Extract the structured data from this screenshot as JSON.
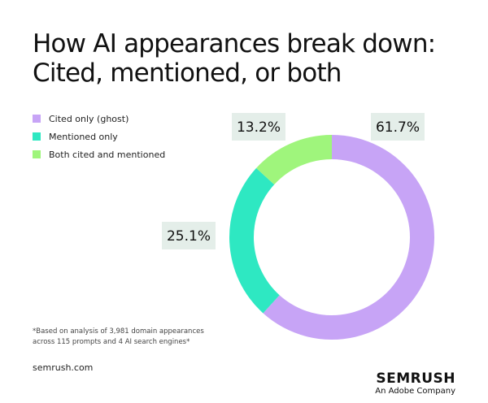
{
  "chart_data": {
    "type": "donut",
    "title": "How AI appearances break down: Cited, mentioned, or both",
    "categories": [
      "Cited only (ghost)",
      "Mentioned only",
      "Both cited and mentioned"
    ],
    "values": [
      61.7,
      25.1,
      13.2
    ],
    "value_labels": [
      "61.7%",
      "25.1%",
      "13.2%"
    ],
    "colors": [
      "#c7a4f6",
      "#2ee8c2",
      "#9ff57c"
    ],
    "footnote": "*Based on analysis of 3,981 domain appearances across 115 prompts and 4 AI search engines*"
  },
  "footer": {
    "site": "semrush.com",
    "brand": "SEMRUSH",
    "tagline": "An Adobe Company"
  }
}
